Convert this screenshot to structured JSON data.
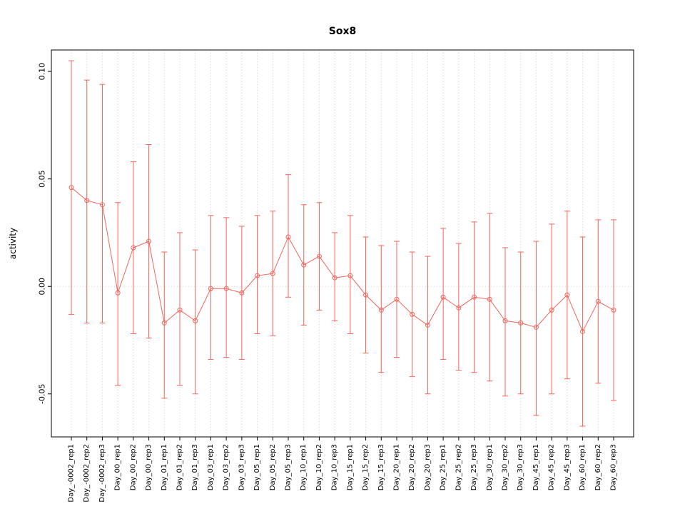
{
  "chart_data": {
    "type": "scatter",
    "title": "Sox8",
    "ylabel": "activity",
    "xlabel": "",
    "ylim": [
      -0.07,
      0.11
    ],
    "yticks": [
      -0.05,
      0.0,
      0.05,
      0.1
    ],
    "ytick_labels": [
      "-0.05",
      "0.00",
      "0.05",
      "0.10"
    ],
    "grid": "vertical dotted line per category, dotted horizontal line at y=0",
    "legend": "none",
    "point_style": "open circles with capped error bars connected by a thin line",
    "accent_color": "#f4655c",
    "grid_color": "#cfcfcf",
    "axis_color": "#000000",
    "categories": [
      "Day_-0002_rep1",
      "Day_-0002_rep2",
      "Day_-0002_rep3",
      "Day_00_rep1",
      "Day_00_rep2",
      "Day_00_rep3",
      "Day_01_rep1",
      "Day_01_rep2",
      "Day_01_rep3",
      "Day_03_rep1",
      "Day_03_rep2",
      "Day_03_rep3",
      "Day_05_rep1",
      "Day_05_rep2",
      "Day_05_rep3",
      "Day_10_rep1",
      "Day_10_rep2",
      "Day_10_rep3",
      "Day_15_rep1",
      "Day_15_rep2",
      "Day_15_rep3",
      "Day_20_rep1",
      "Day_20_rep2",
      "Day_20_rep3",
      "Day_25_rep1",
      "Day_25_rep2",
      "Day_25_rep3",
      "Day_30_rep1",
      "Day_30_rep2",
      "Day_30_rep3",
      "Day_45_rep1",
      "Day_45_rep2",
      "Day_45_rep3",
      "Day_60_rep1",
      "Day_60_rep2",
      "Day_60_rep3"
    ],
    "series": [
      {
        "name": "activity",
        "values": [
          0.046,
          0.04,
          0.038,
          -0.003,
          0.018,
          0.021,
          -0.017,
          -0.011,
          -0.016,
          -0.001,
          -0.001,
          -0.003,
          0.005,
          0.006,
          0.023,
          0.01,
          0.014,
          0.004,
          0.005,
          -0.004,
          -0.011,
          -0.006,
          -0.013,
          -0.018,
          -0.005,
          -0.01,
          -0.005,
          -0.006,
          -0.016,
          -0.017,
          -0.019,
          -0.011,
          -0.004,
          -0.021,
          -0.007,
          -0.011
        ],
        "upper": [
          0.105,
          0.096,
          0.094,
          0.039,
          0.058,
          0.066,
          0.016,
          0.025,
          0.017,
          0.033,
          0.032,
          0.028,
          0.033,
          0.035,
          0.052,
          0.038,
          0.039,
          0.025,
          0.033,
          0.023,
          0.019,
          0.021,
          0.016,
          0.014,
          0.027,
          0.02,
          0.03,
          0.034,
          0.018,
          0.016,
          0.021,
          0.029,
          0.035,
          0.023,
          0.031,
          0.031
        ],
        "lower": [
          -0.013,
          -0.017,
          -0.017,
          -0.046,
          -0.022,
          -0.024,
          -0.052,
          -0.046,
          -0.05,
          -0.034,
          -0.033,
          -0.034,
          -0.022,
          -0.023,
          -0.005,
          -0.018,
          -0.011,
          -0.016,
          -0.022,
          -0.031,
          -0.04,
          -0.033,
          -0.042,
          -0.05,
          -0.034,
          -0.039,
          -0.04,
          -0.044,
          -0.051,
          -0.05,
          -0.06,
          -0.05,
          -0.043,
          -0.065,
          -0.045,
          -0.053
        ]
      }
    ]
  }
}
